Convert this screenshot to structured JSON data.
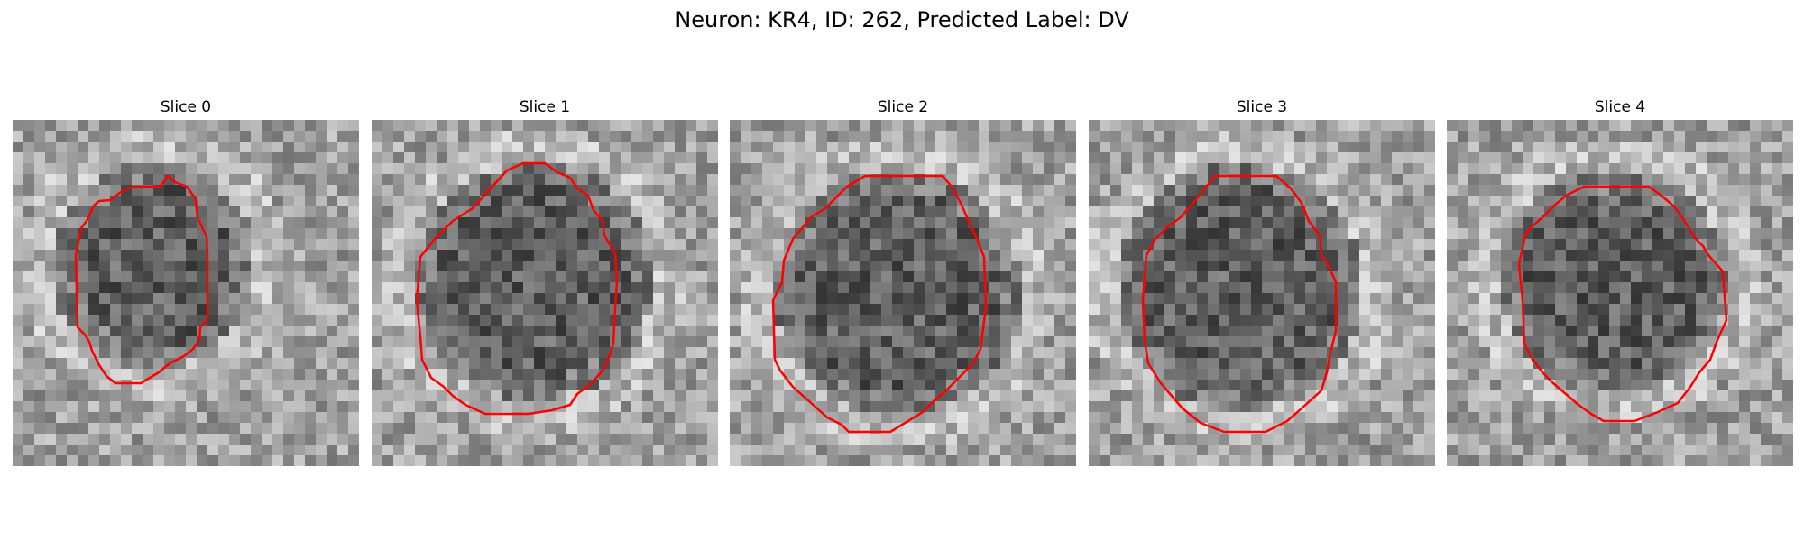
{
  "figure": {
    "title": "Neuron: KR4, ID: 262, Predicted Label: DV"
  },
  "panels": [
    {
      "title": "Slice 0"
    },
    {
      "title": "Slice 1"
    },
    {
      "title": "Slice 2"
    },
    {
      "title": "Slice 3"
    },
    {
      "title": "Slice 4"
    }
  ],
  "colors": {
    "contour": "#ff0000"
  }
}
